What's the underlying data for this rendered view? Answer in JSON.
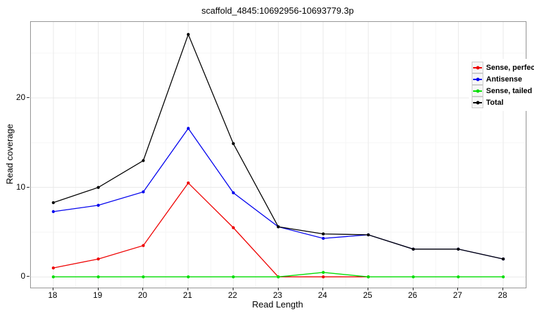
{
  "figure": {
    "title": "scaffold_4845:10692956-10693779.3p",
    "x_axis_label": "Read Length",
    "y_axis_label": "Read coverage"
  },
  "chart_data": {
    "type": "line",
    "title": "scaffold_4845:10692956-10693779.3p",
    "xlabel": "Read Length",
    "ylabel": "Read coverage",
    "xlim": [
      17.5,
      28.5
    ],
    "ylim": [
      -1.2,
      28.5
    ],
    "xticks": [
      18,
      19,
      20,
      21,
      22,
      23,
      24,
      25,
      26,
      27,
      28
    ],
    "yticks": [
      0,
      10,
      20
    ],
    "yticks_minor": [
      5,
      15,
      25
    ],
    "xticks_minor": [
      17.5,
      18.5,
      19.5,
      20.5,
      21.5,
      22.5,
      23.5,
      24.5,
      25.5,
      26.5,
      27.5,
      28.5
    ],
    "grid": "major and minor, light gray on white panel",
    "legend_position": "inside top-right",
    "panel_border_color": "#959595",
    "grid_major_color": "#e9e9e9",
    "grid_minor_color": "#f6f6f6",
    "series": [
      {
        "name": "Sense, perfect",
        "color": "#ee0000",
        "x": [
          18,
          19,
          20,
          21,
          22,
          23,
          24,
          25
        ],
        "values": [
          1.0,
          2.0,
          3.5,
          10.5,
          5.5,
          0,
          0,
          0
        ]
      },
      {
        "name": "Antisense",
        "color": "#0000ee",
        "x": [
          18,
          19,
          20,
          21,
          22,
          23,
          24,
          25,
          26,
          27,
          28
        ],
        "values": [
          7.3,
          8.0,
          9.5,
          16.6,
          9.4,
          5.6,
          4.3,
          4.7,
          3.1,
          3.1,
          2.0
        ]
      },
      {
        "name": "Sense, tailed",
        "color": "#00dd00",
        "x": [
          18,
          19,
          20,
          21,
          22,
          23,
          24,
          25,
          26,
          27,
          28
        ],
        "values": [
          0,
          0,
          0,
          0,
          0,
          0,
          0.5,
          0,
          0,
          0,
          0
        ]
      },
      {
        "name": "Total",
        "color": "#000000",
        "x": [
          18,
          19,
          20,
          21,
          22,
          23,
          24,
          25,
          26,
          27,
          28
        ],
        "values": [
          8.3,
          10.0,
          13.0,
          27.1,
          14.9,
          5.6,
          4.8,
          4.7,
          3.1,
          3.1,
          2.0
        ]
      }
    ]
  }
}
